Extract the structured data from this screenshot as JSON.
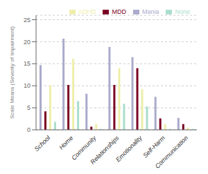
{
  "chart_data": {
    "type": "bar",
    "ylabel": "Scale Means (Severity of Impairment)",
    "categories": [
      "School",
      "Home",
      "Community",
      "Relationships",
      "Emotionality",
      "Self-Harm",
      "Communication"
    ],
    "series": [
      {
        "name": "Mania",
        "color": "#aaaacc",
        "values": [
          14.7,
          20.7,
          8.2,
          18.8,
          16.5,
          7.5,
          2.7
        ]
      },
      {
        "name": "MDD",
        "color": "#7a0020",
        "values": [
          4.2,
          10.2,
          0.7,
          10.2,
          14.0,
          2.6,
          1.3
        ]
      },
      {
        "name": "ADHD",
        "color": "#eeeeaa",
        "values": [
          10.1,
          16.1,
          1.3,
          14.0,
          9.2,
          1.3,
          0.5
        ]
      },
      {
        "name": "None",
        "color": "#aaddcc",
        "values": [
          1.8,
          6.5,
          0.2,
          5.9,
          5.3,
          0.2,
          0.2
        ]
      }
    ],
    "ylim": [
      0,
      26
    ],
    "yticks": [
      0,
      5,
      10,
      15,
      20,
      25
    ],
    "grid": true,
    "legend": "top"
  }
}
